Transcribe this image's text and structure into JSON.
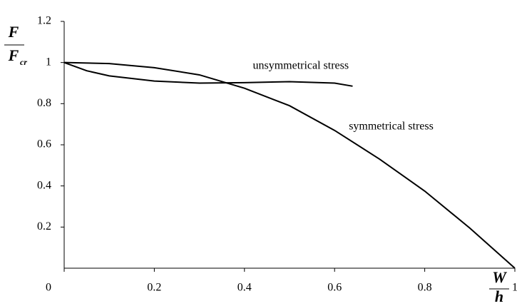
{
  "chart_data": {
    "type": "line",
    "ylabel": {
      "numerator": "F",
      "denominator": "F",
      "denominator_subscript": "cr"
    },
    "xlabel": {
      "numerator": "W",
      "denominator": "h"
    },
    "series": [
      {
        "name": "symmetrical stress",
        "color": "#000000",
        "x": [
          0,
          0.1,
          0.2,
          0.3,
          0.4,
          0.5,
          0.6,
          0.7,
          0.8,
          0.9,
          1
        ],
        "values": [
          1,
          0.995,
          0.975,
          0.94,
          0.875,
          0.79,
          0.67,
          0.53,
          0.375,
          0.195,
          0
        ]
      },
      {
        "name": "unsymmetrical stress",
        "color": "#000000",
        "x": [
          0,
          0.05,
          0.1,
          0.2,
          0.3,
          0.4,
          0.5,
          0.6,
          0.64
        ],
        "values": [
          1,
          0.96,
          0.935,
          0.91,
          0.9,
          0.902,
          0.907,
          0.9,
          0.885
        ]
      }
    ],
    "xlim": [
      0,
      1
    ],
    "xticks": [
      0,
      0.2,
      0.4,
      0.6,
      0.8,
      1
    ],
    "ylim": [
      0,
      1.2
    ],
    "yticks": [
      0.2,
      0.4,
      0.6,
      0.8,
      1,
      1.2
    ],
    "grid": false
  }
}
